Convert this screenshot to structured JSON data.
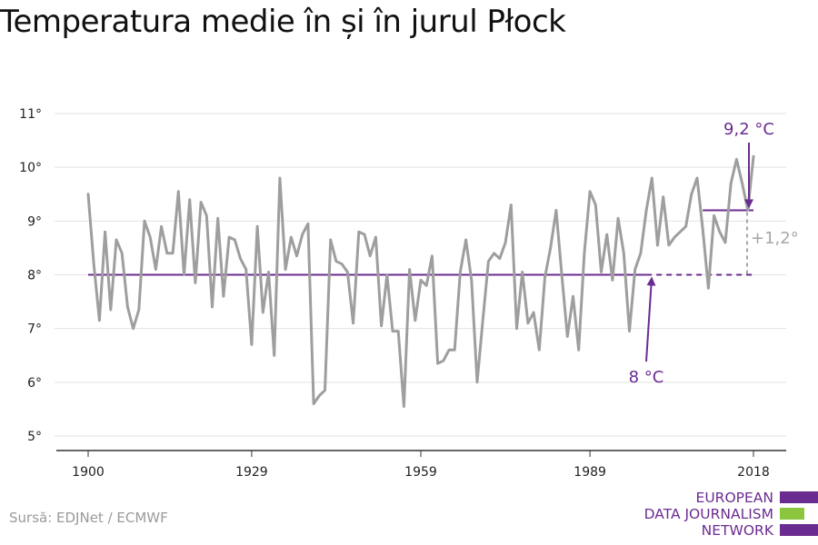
{
  "title": "Temperatura medie în și în jurul Płock",
  "source": "Sursă: EDJNet / ECMWF",
  "logo": {
    "lines": [
      "EUROPEAN",
      "DATA JOURNALISM",
      "NETWORK"
    ],
    "colors": {
      "purple": "#6b2c91",
      "green": "#8cc63f"
    }
  },
  "colors": {
    "series": "#9e9e9e",
    "accent": "#6b2c91",
    "grid": "#e2e2e2",
    "axis": "#333333",
    "diff": "#a6a6a6"
  },
  "chart_data": {
    "type": "line",
    "title": "Temperatura medie în și în jurul Płock",
    "xlim": [
      1900,
      2018
    ],
    "ylim": [
      5,
      11
    ],
    "x_ticks": [
      1900,
      1929,
      1959,
      1989,
      2018
    ],
    "y_ticks": [
      5,
      6,
      7,
      8,
      9,
      10,
      11
    ],
    "y_tick_labels": [
      "5°",
      "6°",
      "7°",
      "8°",
      "9°",
      "10°",
      "11°"
    ],
    "grid": true,
    "series": [
      {
        "x": [
          1900,
          1901,
          1902,
          1903,
          1904,
          1905,
          1906,
          1907,
          1908,
          1909,
          1910,
          1911,
          1912,
          1913,
          1914,
          1915,
          1916,
          1917,
          1918,
          1919,
          1920,
          1921,
          1922,
          1923,
          1924,
          1925,
          1926,
          1927,
          1928,
          1929,
          1930,
          1931,
          1932,
          1933,
          1934,
          1935,
          1936,
          1937,
          1938,
          1939,
          1940,
          1941,
          1942,
          1943,
          1944,
          1945,
          1946,
          1947,
          1948,
          1949,
          1950,
          1951,
          1952,
          1953,
          1954,
          1955,
          1956,
          1957,
          1958,
          1959,
          1960,
          1961,
          1962,
          1963,
          1964,
          1965,
          1966,
          1967,
          1968,
          1969,
          1970,
          1971,
          1972,
          1973,
          1974,
          1975,
          1976,
          1977,
          1978,
          1979,
          1980,
          1981,
          1982,
          1983,
          1984,
          1985,
          1986,
          1987,
          1988,
          1989,
          1990,
          1991,
          1992,
          1993,
          1994,
          1995,
          1996,
          1997,
          1998,
          1999,
          2000,
          2001,
          2002,
          2003,
          2004,
          2005,
          2006,
          2007,
          2008,
          2009,
          2010,
          2011,
          2012,
          2013,
          2014,
          2015,
          2016,
          2017,
          2018
        ],
        "values": [
          9.5,
          8.2,
          7.15,
          8.8,
          7.35,
          8.65,
          8.4,
          7.4,
          7.0,
          7.35,
          9.0,
          8.7,
          8.1,
          8.9,
          8.4,
          8.4,
          9.55,
          8.0,
          9.4,
          7.85,
          9.35,
          9.1,
          7.4,
          9.05,
          7.6,
          8.7,
          8.65,
          8.3,
          8.1,
          6.7,
          8.9,
          7.3,
          8.05,
          6.5,
          9.8,
          8.1,
          8.7,
          8.35,
          8.75,
          8.95,
          5.6,
          5.75,
          5.85,
          8.65,
          8.25,
          8.2,
          8.05,
          7.1,
          8.8,
          8.75,
          8.35,
          8.7,
          7.05,
          8.0,
          6.95,
          6.95,
          5.55,
          8.1,
          7.15,
          7.9,
          7.8,
          8.35,
          6.35,
          6.4,
          6.6,
          6.6,
          8.05,
          8.65,
          7.9,
          6.0,
          7.15,
          8.25,
          8.4,
          8.3,
          8.6,
          9.3,
          7.0,
          8.05,
          7.1,
          7.3,
          6.6,
          7.95,
          8.5,
          9.2,
          8.0,
          6.85,
          7.6,
          6.6,
          8.4,
          9.55,
          9.3,
          8.05,
          8.75,
          7.9,
          9.05,
          8.4,
          6.95,
          8.1,
          8.4,
          9.2,
          9.8,
          8.55,
          9.45,
          8.55,
          8.7,
          8.8,
          8.9,
          9.5,
          9.8,
          8.85,
          7.75,
          9.1,
          8.8,
          8.6,
          9.7,
          10.15,
          9.7,
          9.2,
          10.2
        ]
      }
    ],
    "reference_line": {
      "value": 8,
      "from": 1900,
      "to": 2018,
      "label": "8 °C"
    },
    "recent_line": {
      "value": 9.2,
      "from": 2009,
      "to": 2018,
      "label": "9,2 °C"
    },
    "difference_label": "+1,2°"
  }
}
